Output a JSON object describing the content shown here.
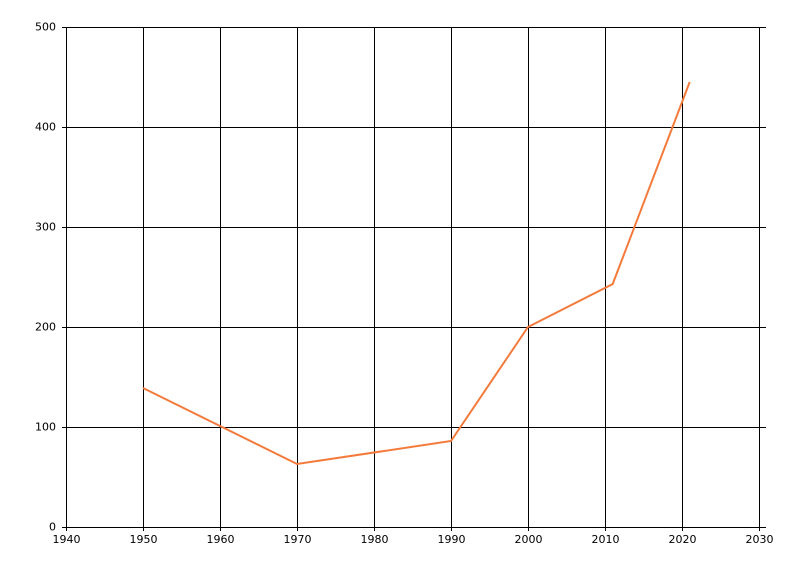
{
  "chart_data": {
    "type": "line",
    "x": [
      1950,
      1970,
      1990,
      2000,
      2011,
      2021
    ],
    "values": [
      139,
      63,
      86,
      200,
      243,
      445
    ],
    "color": "#f47a3c",
    "xlim": [
      1940,
      2030
    ],
    "xticks": [
      1940,
      1950,
      1960,
      1970,
      1980,
      1990,
      2000,
      2010,
      2020,
      2030
    ],
    "ylim": [
      0,
      500
    ],
    "yticks": [
      0,
      100,
      200,
      300,
      400,
      500
    ],
    "grid": true
  }
}
